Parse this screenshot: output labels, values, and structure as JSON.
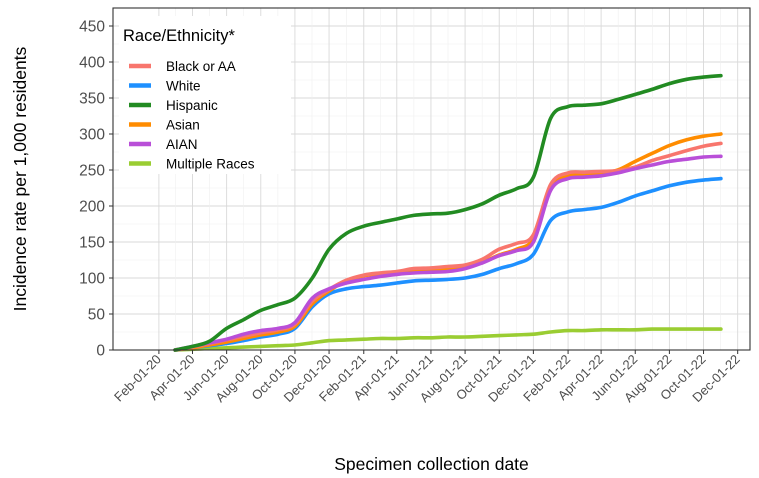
{
  "chart_data": {
    "type": "line",
    "title": "",
    "xlabel": "Specimen collection date",
    "ylabel": "Incidence rate per 1,000 residents",
    "ylim": [
      0,
      475
    ],
    "y_ticks": [
      0,
      50,
      100,
      150,
      200,
      250,
      300,
      350,
      400,
      450
    ],
    "x_ticks": [
      "Feb-01-20",
      "Apr-01-20",
      "Jun-01-20",
      "Aug-01-20",
      "Oct-01-20",
      "Dec-01-20",
      "Feb-01-21",
      "Apr-01-21",
      "Jun-01-21",
      "Aug-01-21",
      "Oct-01-21",
      "Dec-01-21",
      "Feb-01-22",
      "Apr-01-22",
      "Jun-01-22",
      "Aug-01-22",
      "Oct-01-22",
      "Dec-01-22"
    ],
    "grid": true,
    "legend": {
      "title": "Race/Ethnicity*",
      "position": "top-left"
    },
    "series": [
      {
        "name": "Black or AA",
        "color": "#F8766D",
        "x": [
          "Mar-01-20",
          "Apr-01-20",
          "May-01-20",
          "Jun-01-20",
          "Jul-01-20",
          "Aug-01-20",
          "Sep-01-20",
          "Oct-01-20",
          "Nov-01-20",
          "Dec-01-20",
          "Jan-01-21",
          "Feb-01-21",
          "Mar-01-21",
          "Apr-01-21",
          "May-01-21",
          "Jun-01-21",
          "Jul-01-21",
          "Aug-01-21",
          "Sep-01-21",
          "Oct-01-21",
          "Nov-01-21",
          "Dec-01-21",
          "Jan-01-22",
          "Feb-01-22",
          "Mar-01-22",
          "Apr-01-22",
          "May-01-22",
          "Jun-01-22",
          "Jul-01-22",
          "Aug-01-22",
          "Sep-01-22",
          "Oct-01-22",
          "Nov-01-22"
        ],
        "values": [
          0,
          4,
          9,
          14,
          19,
          24,
          28,
          36,
          68,
          84,
          97,
          104,
          107,
          109,
          113,
          114,
          116,
          118,
          126,
          140,
          148,
          160,
          230,
          246,
          247,
          248,
          249,
          254,
          263,
          270,
          277,
          283,
          287
        ]
      },
      {
        "name": "White",
        "color": "#1E90FF",
        "x": [
          "Mar-01-20",
          "Apr-01-20",
          "May-01-20",
          "Jun-01-20",
          "Jul-01-20",
          "Aug-01-20",
          "Sep-01-20",
          "Oct-01-20",
          "Nov-01-20",
          "Dec-01-20",
          "Jan-01-21",
          "Feb-01-21",
          "Mar-01-21",
          "Apr-01-21",
          "May-01-21",
          "Jun-01-21",
          "Jul-01-21",
          "Aug-01-21",
          "Sep-01-21",
          "Oct-01-21",
          "Nov-01-21",
          "Dec-01-21",
          "Jan-01-22",
          "Feb-01-22",
          "Mar-01-22",
          "Apr-01-22",
          "May-01-22",
          "Jun-01-22",
          "Jul-01-22",
          "Aug-01-22",
          "Sep-01-22",
          "Oct-01-22",
          "Nov-01-22"
        ],
        "values": [
          0,
          3,
          6,
          9,
          13,
          18,
          22,
          30,
          60,
          78,
          85,
          88,
          90,
          93,
          96,
          97,
          98,
          100,
          105,
          113,
          120,
          133,
          180,
          192,
          195,
          198,
          205,
          214,
          221,
          228,
          233,
          236,
          238
        ]
      },
      {
        "name": "Hispanic",
        "color": "#228B22",
        "x": [
          "Mar-01-20",
          "Apr-01-20",
          "May-01-20",
          "Jun-01-20",
          "Jul-01-20",
          "Aug-01-20",
          "Sep-01-20",
          "Oct-01-20",
          "Nov-01-20",
          "Dec-01-20",
          "Jan-01-21",
          "Feb-01-21",
          "Mar-01-21",
          "Apr-01-21",
          "May-01-21",
          "Jun-01-21",
          "Jul-01-21",
          "Aug-01-21",
          "Sep-01-21",
          "Oct-01-21",
          "Nov-01-21",
          "Dec-01-21",
          "Jan-01-22",
          "Feb-01-22",
          "Mar-01-22",
          "Apr-01-22",
          "May-01-22",
          "Jun-01-22",
          "Jul-01-22",
          "Aug-01-22",
          "Sep-01-22",
          "Oct-01-22",
          "Nov-01-22"
        ],
        "values": [
          0,
          5,
          12,
          30,
          42,
          55,
          63,
          72,
          100,
          140,
          162,
          172,
          177,
          182,
          187,
          189,
          190,
          195,
          203,
          215,
          224,
          240,
          322,
          338,
          340,
          342,
          348,
          355,
          362,
          370,
          376,
          379,
          381
        ]
      },
      {
        "name": "Asian",
        "color": "#FF8C00",
        "x": [
          "Mar-01-20",
          "Apr-01-20",
          "May-01-20",
          "Jun-01-20",
          "Jul-01-20",
          "Aug-01-20",
          "Sep-01-20",
          "Oct-01-20",
          "Nov-01-20",
          "Dec-01-20",
          "Jan-01-21",
          "Feb-01-21",
          "Mar-01-21",
          "Apr-01-21",
          "May-01-21",
          "Jun-01-21",
          "Jul-01-21",
          "Aug-01-21",
          "Sep-01-21",
          "Oct-01-21",
          "Nov-01-21",
          "Dec-01-21",
          "Jan-01-22",
          "Feb-01-22",
          "Mar-01-22",
          "Apr-01-22",
          "May-01-22",
          "Jun-01-22",
          "Jul-01-22",
          "Aug-01-22",
          "Sep-01-22",
          "Oct-01-22",
          "Nov-01-22"
        ],
        "values": [
          0,
          3,
          7,
          11,
          16,
          21,
          25,
          33,
          64,
          82,
          96,
          103,
          106,
          108,
          110,
          111,
          112,
          115,
          122,
          132,
          140,
          155,
          226,
          242,
          244,
          246,
          250,
          262,
          273,
          284,
          292,
          297,
          300
        ]
      },
      {
        "name": "AIAN",
        "color": "#B94FD8",
        "x": [
          "Mar-01-20",
          "Apr-01-20",
          "May-01-20",
          "Jun-01-20",
          "Jul-01-20",
          "Aug-01-20",
          "Sep-01-20",
          "Oct-01-20",
          "Nov-01-20",
          "Dec-01-20",
          "Jan-01-21",
          "Feb-01-21",
          "Mar-01-21",
          "Apr-01-21",
          "May-01-21",
          "Jun-01-21",
          "Jul-01-21",
          "Aug-01-21",
          "Sep-01-21",
          "Oct-01-21",
          "Nov-01-21",
          "Dec-01-21",
          "Jan-01-22",
          "Feb-01-22",
          "Mar-01-22",
          "Apr-01-22",
          "May-01-22",
          "Jun-01-22",
          "Jul-01-22",
          "Aug-01-22",
          "Sep-01-22",
          "Oct-01-22",
          "Nov-01-22"
        ],
        "values": [
          0,
          5,
          10,
          15,
          22,
          27,
          30,
          38,
          72,
          85,
          93,
          98,
          102,
          105,
          107,
          108,
          109,
          113,
          121,
          131,
          138,
          150,
          222,
          238,
          240,
          242,
          246,
          252,
          257,
          262,
          265,
          268,
          269
        ]
      },
      {
        "name": "Multiple Races",
        "color": "#9ACD32",
        "x": [
          "Mar-01-20",
          "Apr-01-20",
          "May-01-20",
          "Jun-01-20",
          "Jul-01-20",
          "Aug-01-20",
          "Sep-01-20",
          "Oct-01-20",
          "Nov-01-20",
          "Dec-01-20",
          "Jan-01-21",
          "Feb-01-21",
          "Mar-01-21",
          "Apr-01-21",
          "May-01-21",
          "Jun-01-21",
          "Jul-01-21",
          "Aug-01-21",
          "Sep-01-21",
          "Oct-01-21",
          "Nov-01-21",
          "Dec-01-21",
          "Jan-01-22",
          "Feb-01-22",
          "Mar-01-22",
          "Apr-01-22",
          "May-01-22",
          "Jun-01-22",
          "Jul-01-22",
          "Aug-01-22",
          "Sep-01-22",
          "Oct-01-22",
          "Nov-01-22"
        ],
        "values": [
          0,
          1,
          2,
          3,
          4,
          5,
          6,
          7,
          10,
          13,
          14,
          15,
          16,
          16,
          17,
          17,
          18,
          18,
          19,
          20,
          21,
          22,
          25,
          27,
          27,
          28,
          28,
          28,
          29,
          29,
          29,
          29,
          29
        ]
      }
    ]
  }
}
